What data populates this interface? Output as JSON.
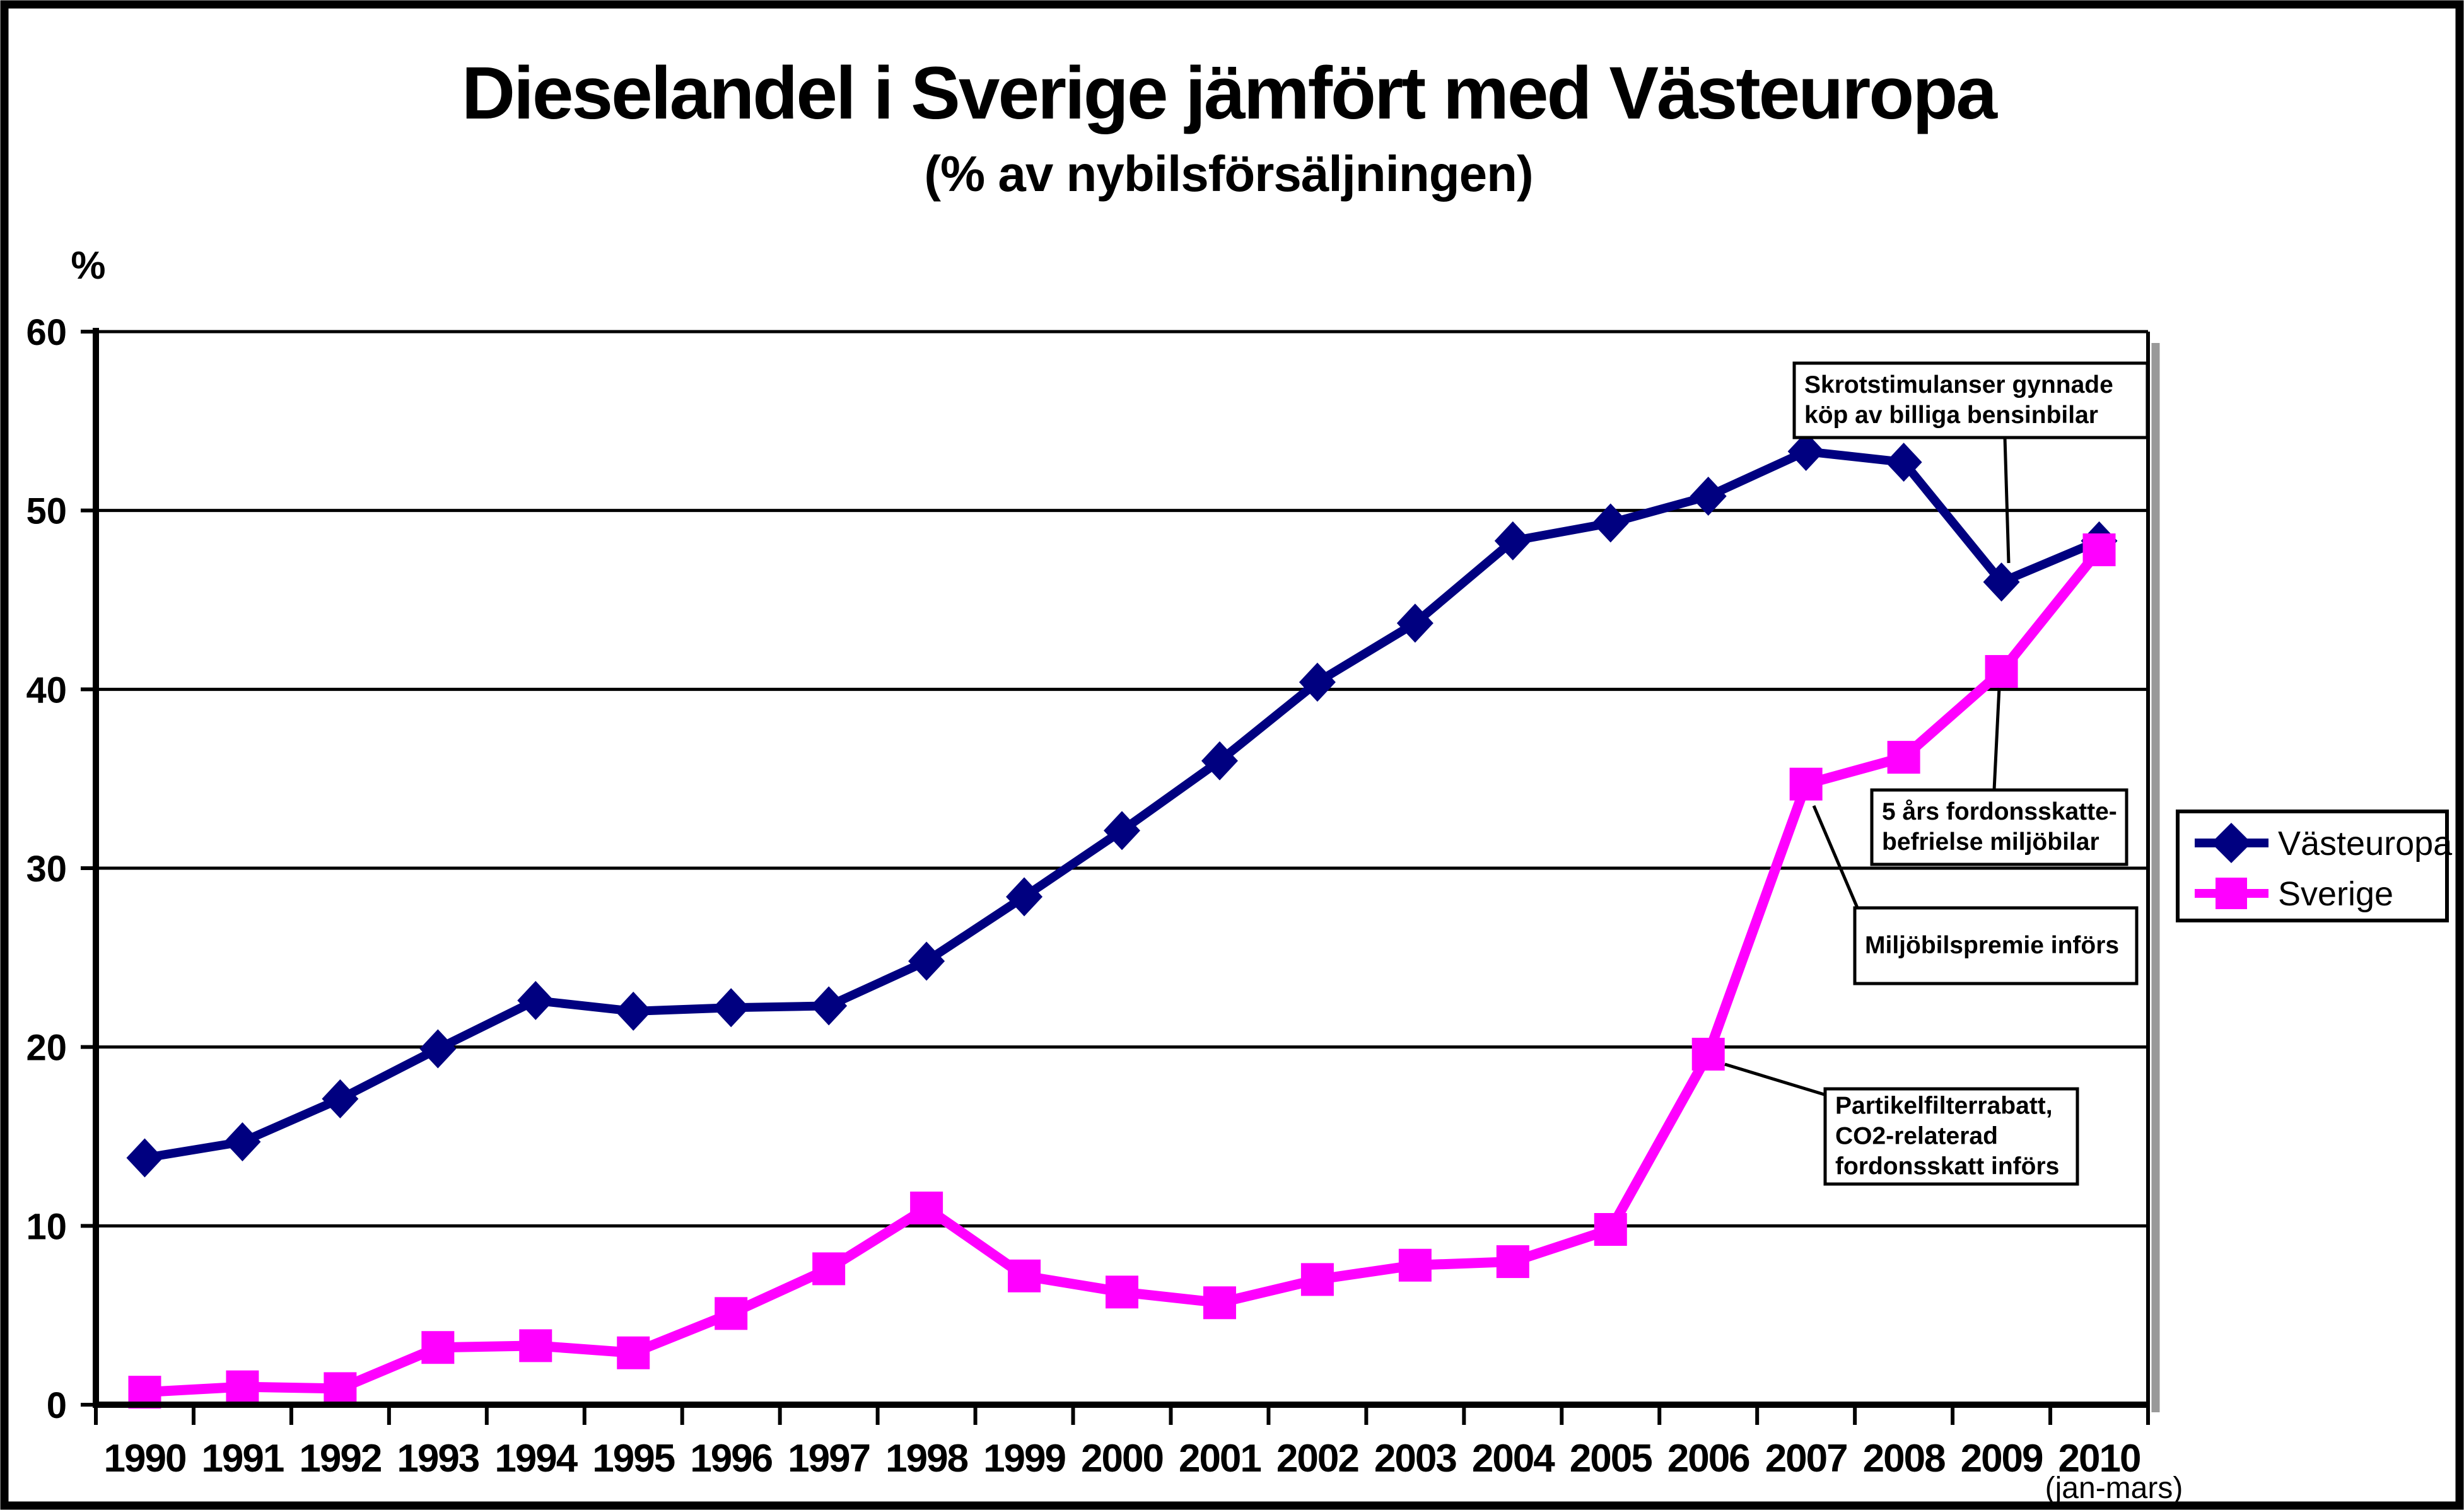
{
  "header": {
    "title": "Dieselandel i Sverige jämfört med Västeuropa",
    "subtitle": "(% av nybilsförsäljningen)"
  },
  "axes": {
    "y_unit": "%",
    "y_ticks": [
      0,
      10,
      20,
      30,
      40,
      50,
      60
    ],
    "x_note": "(jan-mars)"
  },
  "legend": {
    "items": [
      {
        "label": "Västeuropa",
        "color": "#000080",
        "marker": "diamond"
      },
      {
        "label": "Sverige",
        "color": "#FF00FF",
        "marker": "square"
      }
    ]
  },
  "colors": {
    "vasteuropa": "#000080",
    "sverige": "#FF00FF",
    "grid": "#000000",
    "shadow": "#999999"
  },
  "chart_data": {
    "type": "line",
    "title": "Dieselandel i Sverige jämfört med Västeuropa",
    "subtitle": "(% av nybilsförsäljningen)",
    "xlabel": "",
    "ylabel": "%",
    "ylim": [
      0,
      60
    ],
    "y_tick_step": 10,
    "grid": true,
    "legend_position": "right",
    "categories": [
      "1990",
      "1991",
      "1992",
      "1993",
      "1994",
      "1995",
      "1996",
      "1997",
      "1998",
      "1999",
      "2000",
      "2001",
      "2002",
      "2003",
      "2004",
      "2005",
      "2006",
      "2007",
      "2008",
      "2009",
      "2010"
    ],
    "x_last_note": "(jan-mars)",
    "series": [
      {
        "name": "Västeuropa",
        "color": "#000080",
        "marker": "diamond",
        "values": [
          13.8,
          14.7,
          17.1,
          19.9,
          22.6,
          22.0,
          22.2,
          22.3,
          24.8,
          28.4,
          32.1,
          36.0,
          40.4,
          43.7,
          48.3,
          49.3,
          50.8,
          53.3,
          52.7,
          46.0,
          48.3
        ]
      },
      {
        "name": "Sverige",
        "color": "#FF00FF",
        "marker": "square",
        "values": [
          0.7,
          1.0,
          0.9,
          3.2,
          3.3,
          2.9,
          5.1,
          7.6,
          11.0,
          7.2,
          6.3,
          5.7,
          7.0,
          7.8,
          8.0,
          9.8,
          19.6,
          34.7,
          36.2,
          41.0,
          47.8
        ]
      }
    ],
    "annotations": [
      {
        "id": "skrot",
        "lines": [
          "Skrotstimulanser gynnade",
          "köp av billiga bensinbilar"
        ],
        "target": {
          "series": "Västeuropa",
          "year": "2009"
        }
      },
      {
        "id": "skatt",
        "lines": [
          "5 års fordonsskatte-",
          "befrielse miljöbilar"
        ],
        "target": {
          "series": "Sverige",
          "year": "2009"
        }
      },
      {
        "id": "premie",
        "lines": [
          "Miljöbilspremie införs"
        ],
        "target": {
          "series": "Sverige",
          "year": "2007"
        }
      },
      {
        "id": "partikel",
        "lines": [
          "Partikelfilterrabatt,",
          "CO2-relaterad",
          "fordonsskatt införs"
        ],
        "target": {
          "series": "Sverige",
          "year": "2006"
        }
      }
    ]
  }
}
